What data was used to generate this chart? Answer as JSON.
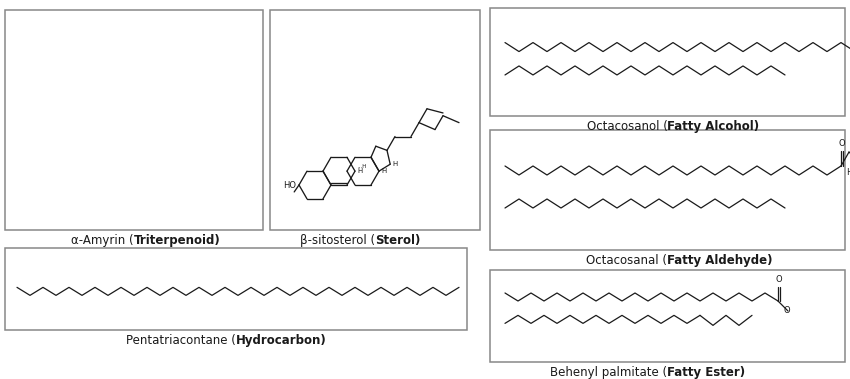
{
  "bg": "#ffffff",
  "lc": "#1a1a1a",
  "ec": "#888888",
  "fs": 8.5,
  "fs_small": 6.0,
  "fs_tiny": 5.0,
  "boxes": {
    "amyrin": [
      5,
      10,
      258,
      220
    ],
    "sitosterol": [
      270,
      10,
      210,
      220
    ],
    "octacosanol": [
      490,
      8,
      355,
      108
    ],
    "octacosanal": [
      490,
      130,
      355,
      120
    ],
    "pentatriac": [
      5,
      248,
      462,
      82
    ],
    "behenyl": [
      490,
      270,
      355,
      92
    ]
  },
  "labels": {
    "amyrin": [
      "α-Amyrin (",
      "Triterpenoid",
      ")"
    ],
    "sitosterol": [
      "β-sitosterol (",
      "Sterol",
      ")"
    ],
    "pentatriac": [
      "Pentatriacontane (",
      "Hydrocarbon",
      ")"
    ],
    "octacosanol": [
      "Octacosanol (",
      "Fatty Alcohol",
      ")"
    ],
    "octacosanal": [
      "Octacosanal (",
      "Fatty Aldehyde",
      ")"
    ],
    "behenyl": [
      "Behenyl palmitate (",
      "Fatty Ester",
      ")"
    ]
  }
}
